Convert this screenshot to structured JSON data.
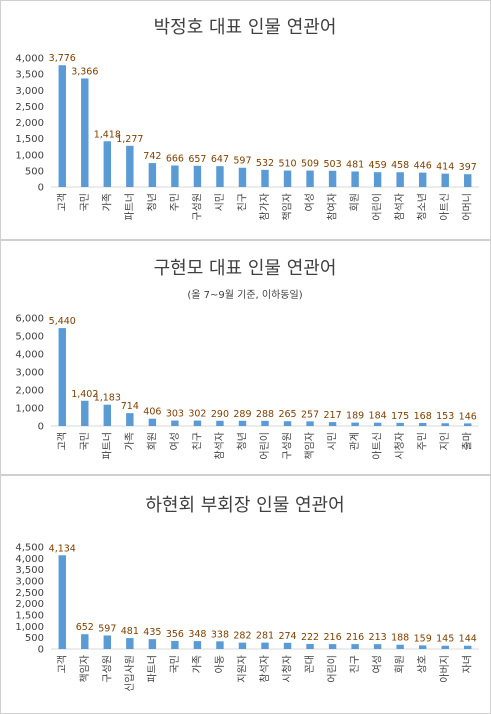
{
  "chart_data": [
    {
      "type": "bar",
      "title": "박정호 대표 인물 연관어",
      "subtitle": "",
      "categories": [
        "고객",
        "국민",
        "가족",
        "파트너",
        "청년",
        "주민",
        "구성원",
        "시민",
        "친구",
        "참가자",
        "책임자",
        "여성",
        "참여자",
        "회원",
        "어린이",
        "참석자",
        "청소년",
        "아트신",
        "어머니"
      ],
      "values": [
        3776,
        3366,
        1418,
        1277,
        742,
        666,
        657,
        647,
        597,
        532,
        510,
        509,
        503,
        481,
        459,
        458,
        446,
        414,
        397
      ],
      "value_labels": [
        "3,776",
        "3,366",
        "1,418",
        "1,277",
        "742",
        "666",
        "657",
        "647",
        "597",
        "532",
        "510",
        "509",
        "503",
        "481",
        "459",
        "458",
        "446",
        "414",
        "397"
      ],
      "ylim": [
        0,
        4000
      ],
      "yticks": [
        0,
        500,
        1000,
        1500,
        2000,
        2500,
        3000,
        3500,
        4000
      ],
      "ytick_labels": [
        "0",
        "500",
        "1,000",
        "1,500",
        "2,000",
        "2,500",
        "3,000",
        "3,500",
        "4,000"
      ],
      "bar_color": "#5b9bd5",
      "label_color": "#7f3f00",
      "grid": false,
      "legend": "none"
    },
    {
      "type": "bar",
      "title": "구현모 대표 인물 연관어",
      "subtitle": "(올 7~9월 기준, 이하동일)",
      "categories": [
        "고객",
        "국민",
        "파트너",
        "가족",
        "회원",
        "여성",
        "친구",
        "참석자",
        "청년",
        "어린이",
        "구성원",
        "책임자",
        "시민",
        "관계",
        "아트신",
        "시청자",
        "주민",
        "지인",
        "출마"
      ],
      "values": [
        5440,
        1402,
        1183,
        714,
        406,
        303,
        302,
        290,
        289,
        288,
        265,
        257,
        217,
        189,
        184,
        175,
        168,
        153,
        146
      ],
      "value_labels": [
        "5,440",
        "1,402",
        "1,183",
        "714",
        "406",
        "303",
        "302",
        "290",
        "289",
        "288",
        "265",
        "257",
        "217",
        "189",
        "184",
        "175",
        "168",
        "153",
        "146"
      ],
      "ylim": [
        0,
        6000
      ],
      "yticks": [
        0,
        1000,
        2000,
        3000,
        4000,
        5000,
        6000
      ],
      "ytick_labels": [
        "0",
        "1,000",
        "2,000",
        "3,000",
        "4,000",
        "5,000",
        "6,000"
      ],
      "bar_color": "#5b9bd5",
      "label_color": "#7f3f00",
      "grid": false,
      "legend": "none"
    },
    {
      "type": "bar",
      "title": "하현회 부회장 인물 연관어",
      "subtitle": "",
      "categories": [
        "고객",
        "책임자",
        "구성원",
        "신입사원",
        "파트너",
        "국민",
        "가족",
        "아동",
        "지원자",
        "참석자",
        "시청자",
        "꼰대",
        "어린이",
        "친구",
        "여성",
        "회원",
        "상호",
        "아버지",
        "자녀"
      ],
      "values": [
        4134,
        652,
        597,
        481,
        435,
        356,
        348,
        338,
        282,
        281,
        274,
        222,
        216,
        216,
        213,
        188,
        159,
        145,
        144
      ],
      "value_labels": [
        "4,134",
        "652",
        "597",
        "481",
        "435",
        "356",
        "348",
        "338",
        "282",
        "281",
        "274",
        "222",
        "216",
        "216",
        "213",
        "188",
        "159",
        "145",
        "144"
      ],
      "ylim": [
        0,
        4500
      ],
      "yticks": [
        0,
        500,
        1000,
        1500,
        2000,
        2500,
        3000,
        3500,
        4000,
        4500
      ],
      "ytick_labels": [
        "0",
        "500",
        "1,000",
        "1,500",
        "2,000",
        "2,500",
        "3,000",
        "3,500",
        "4,000",
        "4,500"
      ],
      "bar_color": "#5b9bd5",
      "label_color": "#7f3f00",
      "grid": false,
      "legend": "none"
    }
  ]
}
